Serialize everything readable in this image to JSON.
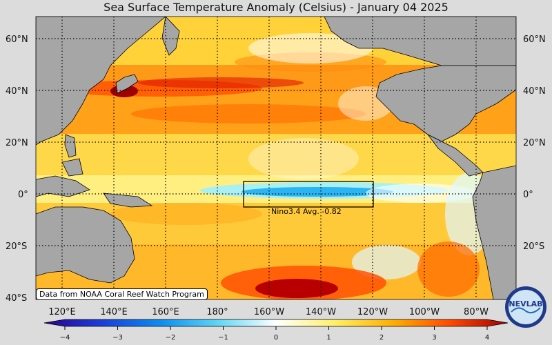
{
  "title": "Sea Surface Temperature Anomaly (Celsius) - January 04 2025",
  "lat_labels": [
    "60°N",
    "40°N",
    "20°N",
    "0°",
    "20°S",
    "40°S"
  ],
  "lon_labels": [
    "120°E",
    "140°E",
    "160°E",
    "180°",
    "160°W",
    "140°W",
    "120°W",
    "100°W",
    "80°W"
  ],
  "colorbar": {
    "ticks": [
      "−4",
      "−3",
      "−2",
      "−1",
      "0",
      "1",
      "2",
      "3",
      "4"
    ],
    "min": -4,
    "max": 4,
    "colors": [
      "#2c0090",
      "#1a3fd8",
      "#0a8df0",
      "#5fd6f5",
      "#ffffff",
      "#fff06a",
      "#ffb000",
      "#ff4a00",
      "#a00000"
    ]
  },
  "nino_box": {
    "label": "Nino3.4 Avg. -0.82",
    "value": -0.82
  },
  "credit": "Data from NOAA Coral Reef Watch Program",
  "logo_text": "NEVLAB",
  "colors": {
    "land": "#a6a6a6",
    "background": "#dcdcdc",
    "box": "#000000"
  }
}
